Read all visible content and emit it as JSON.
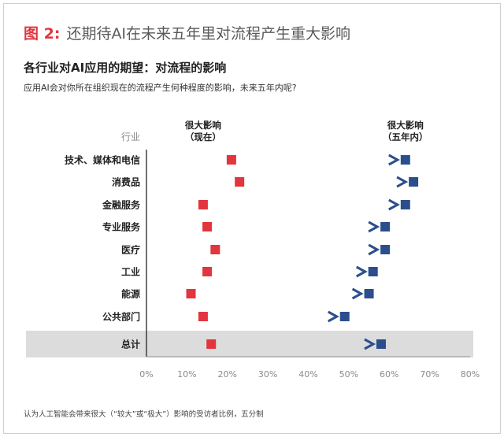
{
  "figure": {
    "number": "图 2:",
    "title": "还期待AI在未来五年里对流程产生重大影响",
    "footnote": "认为人工智能会带来很大（“较大”或“极大”）影响的受访者比例，五分制"
  },
  "chart_data": {
    "type": "dumbbell",
    "title": "各行业对AI应用的期望：对流程的影响",
    "subtitle": "应用AI会对你所在组织现在的流程产生何种程度的影响，未来五年内呢?",
    "category_axis_label": "行业",
    "series": [
      {
        "name": "很大影响（现在）",
        "name_line1": "很大影响",
        "name_line2": "（现在）",
        "color": "#e2353e",
        "values": [
          21,
          23,
          14,
          15,
          17,
          15,
          11,
          14,
          16
        ]
      },
      {
        "name": "很大影响（五年内）",
        "name_line1": "很大影响",
        "name_line2": "（五年内）",
        "color": "#2b4f8c",
        "values": [
          64,
          66,
          64,
          59,
          59,
          56,
          55,
          49,
          58
        ]
      }
    ],
    "categories": [
      "技术、媒体和电信",
      "消费品",
      "金融服务",
      "专业服务",
      "医疗",
      "工业",
      "能源",
      "公共部门",
      "总计"
    ],
    "highlight_category": "总计",
    "x_ticks": [
      "0%",
      "10%",
      "20%",
      "30%",
      "40%",
      "50%",
      "60%",
      "70%",
      "80%"
    ],
    "xlim": [
      0,
      80
    ],
    "grid": false
  }
}
